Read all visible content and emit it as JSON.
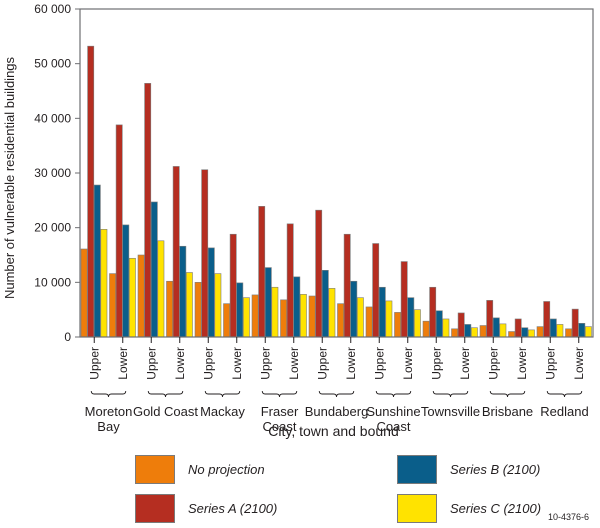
{
  "chart_data": {
    "type": "bar",
    "title": "",
    "xlabel": "City, town and bound",
    "ylabel": "Number of vulnerable residential buildings",
    "ylim": [
      0,
      60000
    ],
    "yticks": [
      0,
      10000,
      20000,
      30000,
      40000,
      50000,
      60000
    ],
    "ytick_labels": [
      "0",
      "10 000",
      "20 000",
      "30 000",
      "40 000",
      "50 000",
      "60 000"
    ],
    "grid": false,
    "legend_position": "bottom",
    "groups": [
      {
        "name": "Moreton Bay",
        "lines": [
          "Moreton",
          "Bay"
        ]
      },
      {
        "name": "Gold Coast",
        "lines": [
          "Gold Coast"
        ]
      },
      {
        "name": "Mackay",
        "lines": [
          "Mackay"
        ]
      },
      {
        "name": "Fraser Coast",
        "lines": [
          "Fraser",
          "Coast"
        ]
      },
      {
        "name": "Bundaberg",
        "lines": [
          "Bundaberg"
        ]
      },
      {
        "name": "Sunshine Coast",
        "lines": [
          "Sunshine",
          "Coast"
        ]
      },
      {
        "name": "Townsville",
        "lines": [
          "Townsville"
        ]
      },
      {
        "name": "Brisbane",
        "lines": [
          "Brisbane"
        ]
      },
      {
        "name": "Redland",
        "lines": [
          "Redland"
        ]
      }
    ],
    "bounds": [
      "Upper",
      "Lower"
    ],
    "categories": [
      "Moreton Bay Upper",
      "Moreton Bay Lower",
      "Gold Coast Upper",
      "Gold Coast Lower",
      "Mackay Upper",
      "Mackay Lower",
      "Fraser Coast Upper",
      "Fraser Coast Lower",
      "Bundaberg Upper",
      "Bundaberg Lower",
      "Sunshine Coast Upper",
      "Sunshine Coast Lower",
      "Townsville Upper",
      "Townsville Lower",
      "Brisbane Upper",
      "Brisbane Lower",
      "Redland Upper",
      "Redland Lower"
    ],
    "series": [
      {
        "name": "No projection",
        "color": "#EE7D0B",
        "values": [
          16100,
          11600,
          15000,
          10200,
          10000,
          6100,
          7700,
          6800,
          7500,
          6100,
          5500,
          4500,
          2900,
          1500,
          2100,
          1000,
          1900,
          1500
        ]
      },
      {
        "name": "Series A (2100)",
        "color": "#B52E21",
        "values": [
          53200,
          38800,
          46400,
          31200,
          30600,
          18800,
          23900,
          20700,
          23200,
          18800,
          17100,
          13800,
          9100,
          4400,
          6700,
          3300,
          6500,
          5100
        ]
      },
      {
        "name": "Series B (2100)",
        "color": "#0A5E8A",
        "values": [
          27800,
          20500,
          24700,
          16600,
          16300,
          9900,
          12700,
          11000,
          12200,
          10200,
          9100,
          7200,
          4800,
          2300,
          3500,
          1700,
          3300,
          2500
        ]
      },
      {
        "name": "Series C (2100)",
        "color": "#FFE300",
        "values": [
          19700,
          14400,
          17600,
          11800,
          11600,
          7200,
          9100,
          7800,
          8900,
          7200,
          6600,
          5000,
          3300,
          1700,
          2400,
          1300,
          2300,
          1900
        ]
      }
    ]
  },
  "legend": [
    {
      "label": "No projection",
      "color": "#EE7D0B"
    },
    {
      "label": "Series A (2100)",
      "color": "#B52E21"
    },
    {
      "label": "Series B (2100)",
      "color": "#0A5E8A"
    },
    {
      "label": "Series C (2100)",
      "color": "#FFE300"
    }
  ],
  "figure_id": "10-4376-6"
}
